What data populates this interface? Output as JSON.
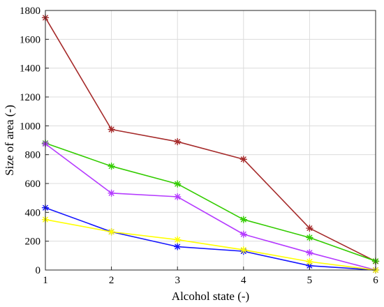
{
  "chart_data": {
    "type": "line",
    "xlabel": "Alcohol state (-)",
    "ylabel": "Size of area (-)",
    "x": [
      1,
      2,
      3,
      4,
      5,
      6
    ],
    "xticks": [
      "1",
      "2",
      "3",
      "4",
      "5",
      "6"
    ],
    "yticks": [
      "0",
      "200",
      "400",
      "600",
      "800",
      "1000",
      "1200",
      "1400",
      "1600",
      "1800"
    ],
    "xlim": [
      1,
      6
    ],
    "ylim": [
      0,
      1800
    ],
    "grid": true,
    "marker": "asterisk",
    "series": [
      {
        "color": "#a52a2a",
        "values": [
          1750,
          975,
          890,
          768,
          290,
          60
        ]
      },
      {
        "color": "#33cc00",
        "values": [
          880,
          720,
          597,
          350,
          225,
          62
        ]
      },
      {
        "color": "#b53bff",
        "values": [
          875,
          533,
          508,
          248,
          120,
          0
        ]
      },
      {
        "color": "#1414ff",
        "values": [
          432,
          265,
          162,
          130,
          30,
          0
        ]
      },
      {
        "color": "#ffff00",
        "values": [
          350,
          265,
          210,
          140,
          58,
          0
        ]
      }
    ]
  }
}
